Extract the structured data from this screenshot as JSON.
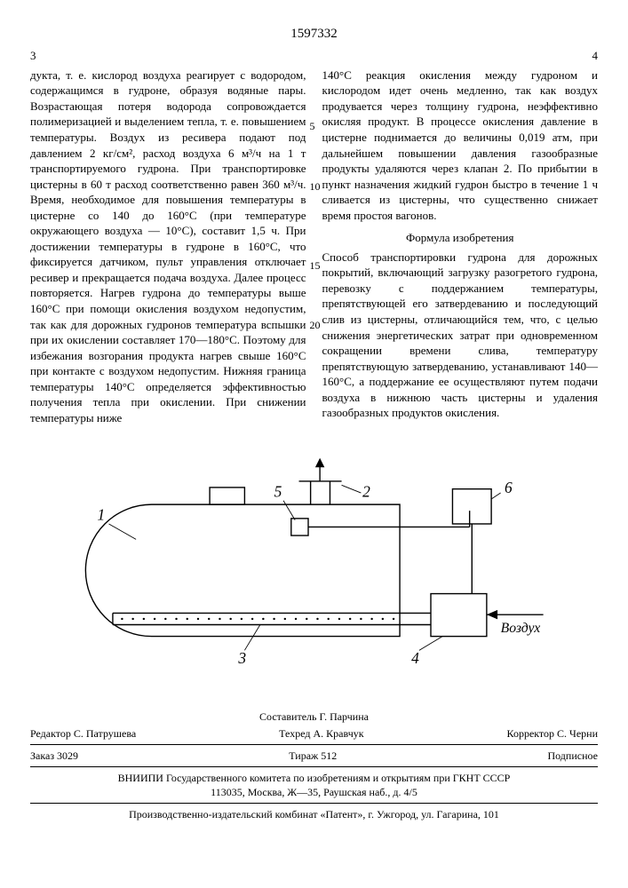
{
  "patent_number": "1597332",
  "page_left_num": "3",
  "page_right_num": "4",
  "left_column": "дукта, т. е. кислород воздуха реагирует с водородом, содержащимся в гудроне, образуя водяные пары. Возрастающая потеря водорода сопровождается полимеризацией и выделением тепла, т. е. повышением температуры. Воздух из ресивера подают под давлением 2 кг/см², расход воздуха 6 м³/ч на 1 т транспортируемого гудрона. При транспортировке цистерны в 60 т расход соответственно равен 360 м³/ч. Время, необходимое для повышения температуры в цистерне со 140 до 160°С (при температуре окружающего воздуха — 10°С), составит 1,5 ч. При достижении температуры в гудроне в 160°С, что фиксируется датчиком, пульт управления отключает ресивер и прекращается подача воздуха. Далее процесс повторяется. Нагрев гудрона до температуры выше 160°С при помощи окисления воздухом недопустим, так как для дорожных гудронов температура вспышки при их окислении составляет 170—180°С. Поэтому для избежания возгорания продукта нагрев свыше 160°С при контакте с воздухом недопустим. Нижняя граница температуры 140°С определяется эффективностью получения тепла при окислении. При снижении температуры ниже",
  "right_column_p1": "140°С реакция окисления между гудроном и кислородом идет очень медленно, так как воздух продувается через толщину гудрона, неэффективно окисляя продукт. В процессе окисления давление в цистерне поднимается до величины 0,019 атм, при дальнейшем повышении давления газообразные продукты удаляются через клапан 2. По прибытии в пункт назначения жидкий гудрон быстро в течение 1 ч сливается из цистерны, что существенно снижает время простоя вагонов.",
  "formula_title": "Формула изобретения",
  "right_column_p2": "Способ транспортировки гудрона для дорожных покрытий, включающий загрузку разогретого гудрона, перевозку с поддержанием температуры, препятствующей его затвердеванию и последующий слив из цистерны, отличающийся тем, что, с целью снижения энергетических затрат при одновременном сокращении времени слива, температуру препятствующую затвердеванию, устанавливают 140—160°С, а поддержание ее осуществляют путем подачи воздуха в нижнюю часть цистерны и удаления газообразных продуктов окисления.",
  "line_markers": {
    "5": 58,
    "10": 126,
    "15": 215,
    "20": 282
  },
  "diagram": {
    "labels": {
      "1": "1",
      "2": "2",
      "3": "3",
      "4": "4",
      "5": "5",
      "6": "6"
    },
    "air_label": "Воздух",
    "stroke": "#000000",
    "stroke_width": 1.6,
    "font": "italic 18px 'Times New Roman'",
    "label_font": "italic 20px 'Times New Roman'"
  },
  "footer": {
    "compiler": "Составитель Г. Парчина",
    "editor": "Редактор С. Патрушева",
    "tech": "Техред А. Кравчук",
    "corrector": "Корректор С. Черни",
    "order": "Заказ 3029",
    "print_run": "Тираж 512",
    "subscription": "Подписное",
    "org1": "ВНИИПИ Государственного комитета по изобретениям и открытиям при ГКНТ СССР",
    "org1_addr": "113035, Москва, Ж—35, Раушская наб., д. 4/5",
    "org2": "Производственно-издательский комбинат «Патент», г. Ужгород, ул. Гагарина, 101"
  }
}
